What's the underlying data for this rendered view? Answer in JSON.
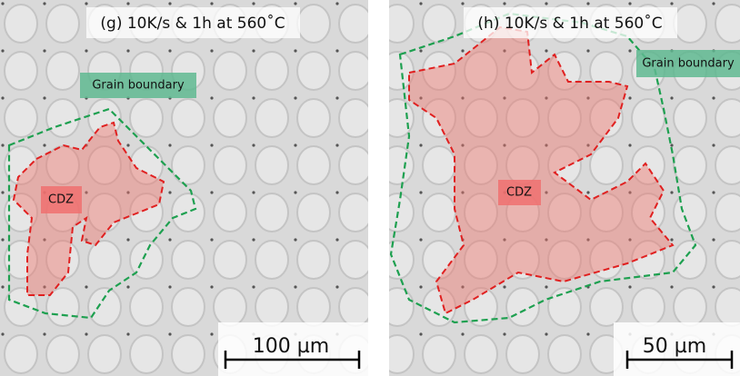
{
  "panels": [
    {
      "title": "(g) 10K/s & 1h at 560˚C",
      "boundary_label": "Grain boundary",
      "zone_label": "CDZ",
      "scale_bar": "100 µm"
    },
    {
      "title": "(h) 10K/s & 1h at 560˚C",
      "boundary_label": "Grain boundary",
      "zone_label": "CDZ",
      "scale_bar": "50 µm"
    }
  ]
}
